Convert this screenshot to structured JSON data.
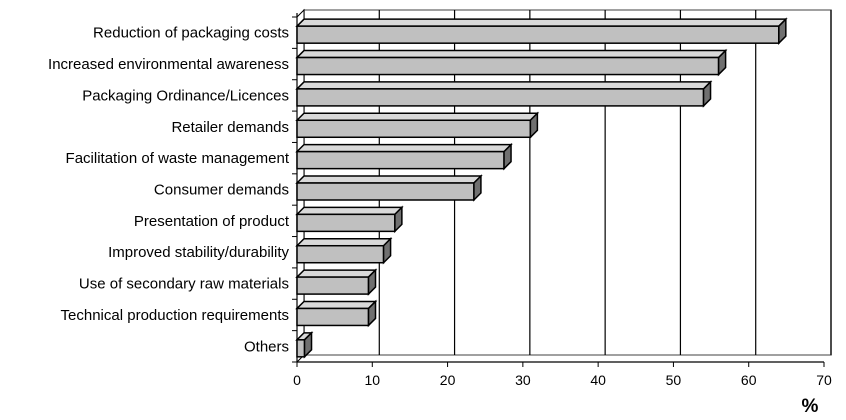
{
  "chart_data": {
    "type": "bar",
    "orientation": "horizontal",
    "style": "3d",
    "categories": [
      "Reduction of packaging costs",
      "Increased environmental awareness",
      "Packaging Ordinance/Licences",
      "Retailer demands",
      "Facilitation of waste management",
      "Consumer demands",
      "Presentation of product",
      "Improved stability/durability",
      "Use of secondary raw materials",
      "Technical production requirements",
      "Others"
    ],
    "values": [
      64,
      56,
      54,
      31,
      27.5,
      23.5,
      13,
      11.5,
      9.5,
      9.5,
      1
    ],
    "xlabel": "%",
    "xlim": [
      0,
      70
    ],
    "xticks": [
      "0",
      "10",
      "20",
      "30",
      "40",
      "50",
      "60",
      "70"
    ],
    "grid": "vertical",
    "legend": "none",
    "colors": {
      "bar_front": "#c0c0c0",
      "bar_top": "#d9d9d9",
      "bar_side": "#707070",
      "outline": "#000000",
      "grid": "#000000",
      "wall": "#ffffff",
      "plot_border": "#808080"
    }
  }
}
